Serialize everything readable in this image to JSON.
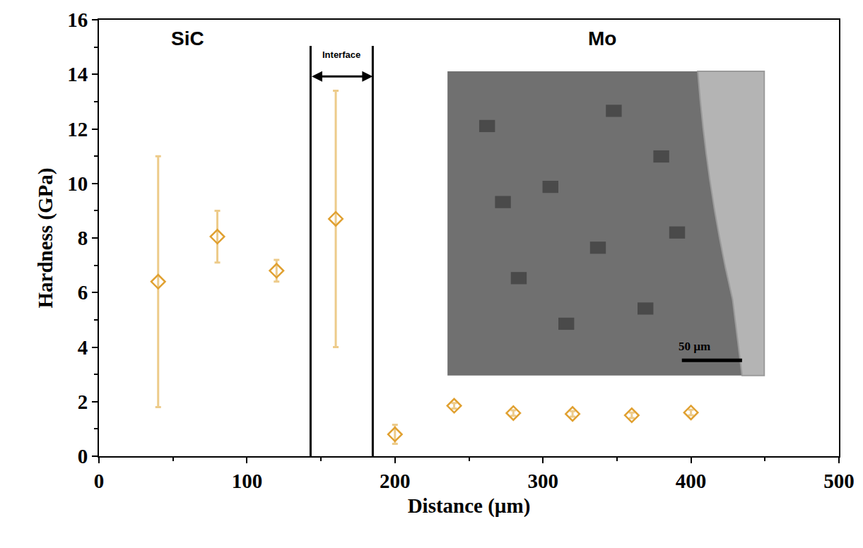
{
  "chart_data": {
    "type": "scatter",
    "x_label": "Distance (µm)",
    "y_label": "Hardness (GPa)",
    "region_labels": [
      "SiC",
      "Mo"
    ],
    "interface": {
      "label": "Interface",
      "x": [
        143,
        185
      ]
    },
    "inset_scale_label": "50 µm",
    "x": [
      40,
      80,
      120,
      160,
      200,
      240,
      280,
      320,
      360,
      400
    ],
    "values": [
      6.4,
      8.05,
      6.8,
      8.7,
      0.8,
      1.85,
      1.58,
      1.55,
      1.5,
      1.6
    ],
    "error": [
      4.6,
      0.95,
      0.4,
      4.7,
      0.35,
      0.1,
      0.1,
      0.1,
      0.1,
      0.1
    ],
    "color": "#E0A030",
    "marker": "diamond-open",
    "xlim": [
      0,
      500
    ],
    "xticks": [
      0,
      100,
      200,
      300,
      400,
      500
    ],
    "ylim": [
      0,
      16
    ],
    "yticks": [
      0,
      2,
      4,
      6,
      8,
      10,
      12,
      14,
      16
    ],
    "grid": false
  }
}
